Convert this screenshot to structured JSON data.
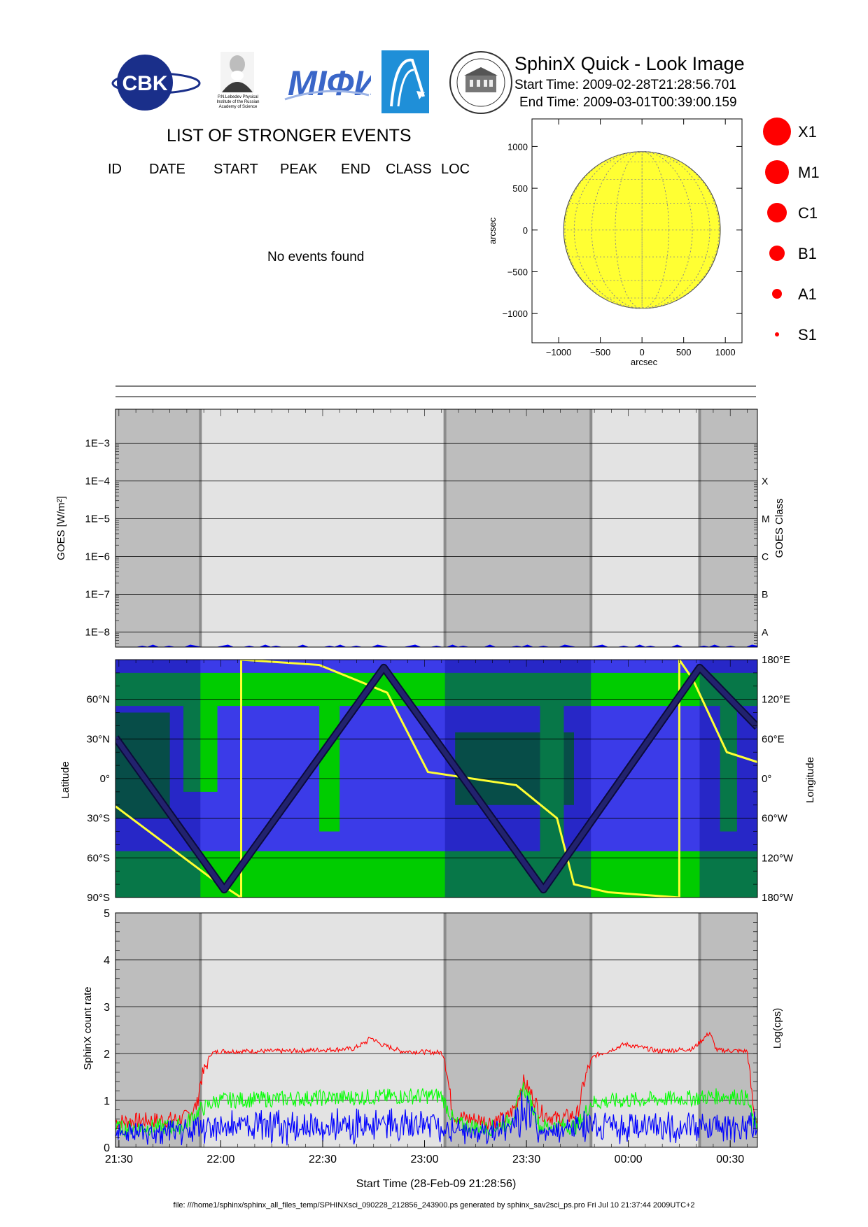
{
  "header": {
    "logos": [
      {
        "name": "cbk-pan-logo",
        "text": "CBK"
      },
      {
        "name": "lebedev-institute-logo",
        "caption": "P.N.Lebedev Physical Institute of the Russian Academy of Science"
      },
      {
        "name": "mifi-logo",
        "text": "MIФИ"
      },
      {
        "name": "roscosmos-logo"
      },
      {
        "name": "university-seal-logo"
      }
    ],
    "title": "SphinX Quick - Look Image",
    "start_time": "Start Time: 2009-02-28T21:28:56.701",
    "end_time": "End Time: 2009-03-01T00:39:00.159"
  },
  "events": {
    "heading": "LIST OF STRONGER EVENTS",
    "columns": [
      "ID",
      "DATE",
      "START",
      "PEAK",
      "END",
      "CLASS",
      "LOC"
    ],
    "empty_message": "No events found"
  },
  "legend": {
    "classes": [
      "X1",
      "M1",
      "C1",
      "B1",
      "A1",
      "S1"
    ],
    "marker_color": "#ff0000"
  },
  "footer": "file: ///home1/sphinx/sphinx_all_files_temp/SPHINXsci_090228_212856_243900.ps generated by sphinx_sav2sci_ps.pro Fri Jul 10 21:37:44 2009UTC+2",
  "chart_data": [
    {
      "type": "scatter",
      "name": "solar-disk",
      "xlabel": "arcsec",
      "ylabel": "arcsec",
      "xlim": [
        -1320,
        1200
      ],
      "ylim": [
        -1350,
        1330
      ],
      "xticks": [
        -1000,
        -500,
        0,
        500,
        1000
      ],
      "yticks": [
        -1000,
        -500,
        0,
        500,
        1000
      ],
      "xtick_labels": [
        "−1000",
        "−500",
        "0",
        "500",
        "1000"
      ],
      "ytick_labels": [
        "−1000",
        "−500",
        "0",
        "500",
        "1000"
      ],
      "disk_radius": 940,
      "disk_color": "#ffff33",
      "events": []
    },
    {
      "type": "line",
      "name": "goes-flux",
      "ylabel": "GOES [W/m²]",
      "y2label": "GOES Class",
      "scale": "log",
      "ylim_log": [
        -8.4,
        -2.1
      ],
      "yticks_log": [
        -8,
        -7,
        -6,
        -5,
        -4,
        -3
      ],
      "ytick_labels": [
        "1E−8",
        "1E−7",
        "1E−6",
        "1E−5",
        "1E−4",
        "1E−3"
      ],
      "class_levels_log": [
        -8,
        -7,
        -6,
        -5,
        -4
      ],
      "class_labels": [
        "A",
        "B",
        "C",
        "M",
        "X"
      ],
      "xlim_min": [
        0,
        189
      ],
      "night_intervals_min": [
        [
          0,
          25
        ],
        [
          97,
          140
        ],
        [
          172,
          189
        ]
      ],
      "series": [
        {
          "name": "GOES long",
          "color": "#ff0000",
          "value_log": -8.43
        },
        {
          "name": "GOES short",
          "color": "#0000ff",
          "value_log": -8.42
        }
      ]
    },
    {
      "type": "line",
      "name": "orbit-track",
      "ylabel": "Latitude",
      "y2label": "Longitude",
      "ylim": [
        -90,
        90
      ],
      "yticks": [
        -90,
        -60,
        -30,
        0,
        30,
        60
      ],
      "ytick_labels": [
        "90°S",
        "60°S",
        "30°S",
        "0°",
        "30°N",
        "60°N"
      ],
      "y2_tick_labels": [
        "180°W",
        "120°W",
        "60°W",
        "0°",
        "60°E",
        "120°E",
        "180°E"
      ],
      "xlim_min": [
        0,
        189
      ],
      "latitude_track": {
        "x": [
          0,
          32,
          79,
          126,
          172,
          189
        ],
        "y": [
          31,
          -84,
          84,
          -84,
          84,
          39
        ]
      },
      "longitude_track": {
        "x": [
          0,
          28,
          37,
          37,
          60,
          80,
          92,
          118,
          130,
          135,
          145,
          166,
          166,
          170,
          180,
          189
        ],
        "y": [
          -42,
          -150,
          -180,
          180,
          172,
          130,
          10,
          -10,
          -60,
          -160,
          -172,
          -180,
          180,
          150,
          40,
          25
        ]
      },
      "colors": {
        "ocean": "#3b3be8",
        "land": "#008000",
        "land_bright": "#00cc00",
        "night_overlay": "#1010a0",
        "latitude_track": "#ffff33",
        "longitude_track": "#22226e"
      }
    },
    {
      "type": "line",
      "name": "sphinx-count-rate",
      "ylabel": "SphinX count rate",
      "y2label": "Log(cps)",
      "ylim": [
        0,
        5
      ],
      "yticks": [
        0,
        1,
        2,
        3,
        4,
        5
      ],
      "xlabel": "Start Time (28-Feb-09 21:28:56)",
      "xlim_min": [
        0,
        189
      ],
      "xtick_minutes": [
        1,
        31,
        61,
        91,
        121,
        151,
        181
      ],
      "xtick_labels": [
        "21:30",
        "22:00",
        "22:30",
        "23:00",
        "23:30",
        "00:00",
        "00:30"
      ],
      "night_intervals_min": [
        [
          0,
          25
        ],
        [
          97,
          140
        ],
        [
          172,
          189
        ]
      ],
      "series": [
        {
          "name": "channel-red",
          "color": "#ff0000",
          "x": [
            0,
            20,
            24,
            25,
            28,
            31,
            50,
            70,
            74,
            75,
            78,
            83,
            84,
            96,
            97,
            99,
            100,
            110,
            115,
            118,
            120,
            122,
            125,
            130,
            136,
            138,
            140,
            141,
            145,
            150,
            160,
            170,
            175,
            176,
            177,
            186,
            188,
            189
          ],
          "y": [
            0.55,
            0.6,
            0.9,
            1.4,
            2.0,
            2.05,
            2.05,
            2.1,
            2.25,
            2.35,
            2.2,
            2.08,
            2.05,
            2.02,
            1.9,
            0.85,
            0.65,
            0.55,
            0.6,
            0.9,
            1.4,
            1.2,
            0.75,
            0.6,
            0.7,
            1.4,
            1.85,
            1.95,
            2.05,
            2.2,
            2.05,
            2.1,
            2.45,
            2.25,
            2.07,
            2.05,
            0.7,
            0.6
          ]
        },
        {
          "name": "channel-green",
          "color": "#00ff00",
          "x": [
            0,
            20,
            25,
            30,
            60,
            96,
            100,
            110,
            115,
            118,
            120,
            122,
            125,
            136,
            140,
            150,
            170,
            180,
            186,
            188,
            189
          ],
          "y": [
            0.4,
            0.45,
            0.8,
            1.0,
            1.05,
            1.1,
            0.5,
            0.4,
            0.5,
            0.8,
            1.3,
            1.0,
            0.45,
            0.45,
            0.95,
            1.0,
            1.05,
            1.1,
            1.05,
            0.5,
            0.45
          ]
        },
        {
          "name": "channel-blue",
          "color": "#0000ff",
          "x": [
            0,
            20,
            25,
            30,
            96,
            100,
            110,
            118,
            120,
            122,
            125,
            140,
            189
          ],
          "y": [
            0.35,
            0.4,
            0.55,
            0.6,
            0.62,
            0.4,
            0.35,
            0.7,
            1.15,
            0.85,
            0.35,
            0.6,
            0.55
          ]
        }
      ]
    }
  ]
}
